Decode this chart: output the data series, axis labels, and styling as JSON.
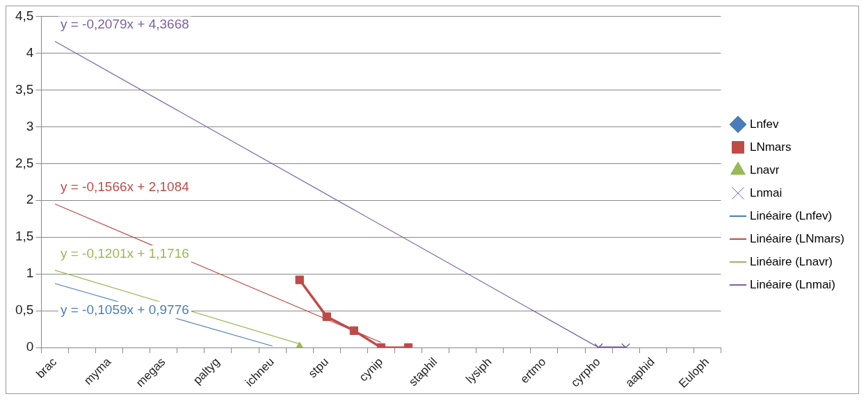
{
  "chart_data": {
    "type": "line",
    "categories": [
      "brac",
      null,
      "myma",
      null,
      "megas",
      null,
      "paltyg",
      null,
      "ichneu",
      null,
      "stpu",
      null,
      "cynip",
      null,
      "staphil",
      null,
      "lysiph",
      null,
      "ertmo",
      null,
      "cyrpho",
      null,
      "aaphid",
      null,
      "Euloph"
    ],
    "series": [
      {
        "name": "Lnfev",
        "color": "#4a7ebb",
        "marker": "diamond",
        "values": [
          null,
          null,
          null,
          null,
          null,
          null,
          null,
          null,
          null,
          null,
          null,
          null,
          null,
          null,
          null,
          null,
          null,
          null,
          null,
          null,
          null,
          null,
          null,
          null,
          null
        ]
      },
      {
        "name": "LNmars",
        "color": "#be4b48",
        "marker": "square",
        "values": [
          null,
          null,
          null,
          null,
          null,
          null,
          null,
          null,
          null,
          0.92,
          0.42,
          0.23,
          0,
          0,
          null,
          null,
          null,
          null,
          null,
          null,
          null,
          null,
          null,
          null,
          null
        ]
      },
      {
        "name": "Lnavr",
        "color": "#98b954",
        "marker": "triangle",
        "values": [
          null,
          null,
          null,
          null,
          null,
          null,
          null,
          null,
          null,
          0,
          null,
          null,
          null,
          null,
          null,
          null,
          null,
          null,
          null,
          null,
          null,
          null,
          null,
          null,
          null
        ]
      },
      {
        "name": "Lnmai",
        "color": "#7d60a0",
        "marker": "cross",
        "values": [
          null,
          null,
          null,
          null,
          null,
          null,
          null,
          null,
          null,
          null,
          null,
          null,
          null,
          null,
          null,
          null,
          null,
          null,
          null,
          null,
          0,
          0,
          null,
          null,
          null
        ]
      },
      {
        "name": "Linéaire (Lnfev)",
        "type": "line",
        "color": "#4a7ebb",
        "marker": "none",
        "values": [
          0.87,
          null,
          null,
          null,
          null,
          null,
          null,
          null,
          0.02,
          null,
          null,
          null,
          null,
          null,
          null,
          null,
          null,
          null,
          null,
          null,
          null,
          null,
          null,
          null,
          null
        ]
      },
      {
        "name": "Linéaire (LNmars)",
        "type": "line",
        "color": "#be4b48",
        "marker": "none",
        "values": [
          1.95,
          null,
          null,
          null,
          null,
          null,
          null,
          null,
          null,
          null,
          null,
          null,
          0.07,
          null,
          null,
          null,
          null,
          null,
          null,
          null,
          null,
          null,
          null,
          null,
          null
        ]
      },
      {
        "name": "Linéaire (Lnavr)",
        "type": "line",
        "color": "#98b954",
        "marker": "none",
        "values": [
          1.05,
          null,
          null,
          null,
          null,
          null,
          null,
          null,
          null,
          0.05,
          null,
          null,
          null,
          null,
          null,
          null,
          null,
          null,
          null,
          null,
          null,
          null,
          null,
          null,
          null
        ]
      },
      {
        "name": "Linéaire (Lnmai)",
        "type": "line",
        "color": "#7d60a0",
        "marker": "none",
        "values": [
          4.16,
          null,
          null,
          null,
          null,
          null,
          null,
          null,
          null,
          null,
          null,
          null,
          null,
          null,
          null,
          null,
          null,
          null,
          null,
          null,
          0,
          null,
          null,
          null,
          null
        ]
      }
    ],
    "annotations": [
      "y = -0,1059x + 0,9776",
      "y = -0,1566x + 2,1084",
      "y = -0,1201x + 1,1716",
      "y = -0,2079x + 4,3668"
    ],
    "ylim": [
      0,
      4.5
    ],
    "yticks": [
      0,
      {
        "value": 0.5,
        "label": "0,5"
      },
      1,
      {
        "value": 1.5,
        "label": "1,5"
      },
      2,
      {
        "value": 2.5,
        "label": "2,5"
      },
      3,
      {
        "value": 3.5,
        "label": "3,5"
      },
      4,
      {
        "value": 4.5,
        "label": "4,5"
      }
    ],
    "grid": "y",
    "legend": "right",
    "line_style": "solid"
  }
}
